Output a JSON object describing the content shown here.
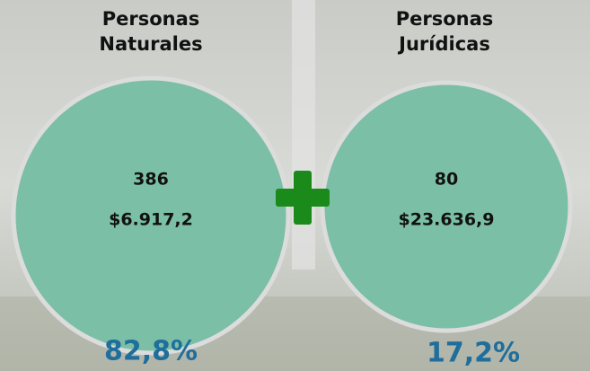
{
  "groups": [
    {
      "title_lines": [
        "Personas",
        "Naturales"
      ],
      "count": "386",
      "amount": "$6.917,2",
      "share": "82,8%"
    },
    {
      "title_lines": [
        "Personas",
        "Jurídicas"
      ],
      "count": "80",
      "amount": "$23.636,9",
      "share": "17,2%"
    }
  ]
}
